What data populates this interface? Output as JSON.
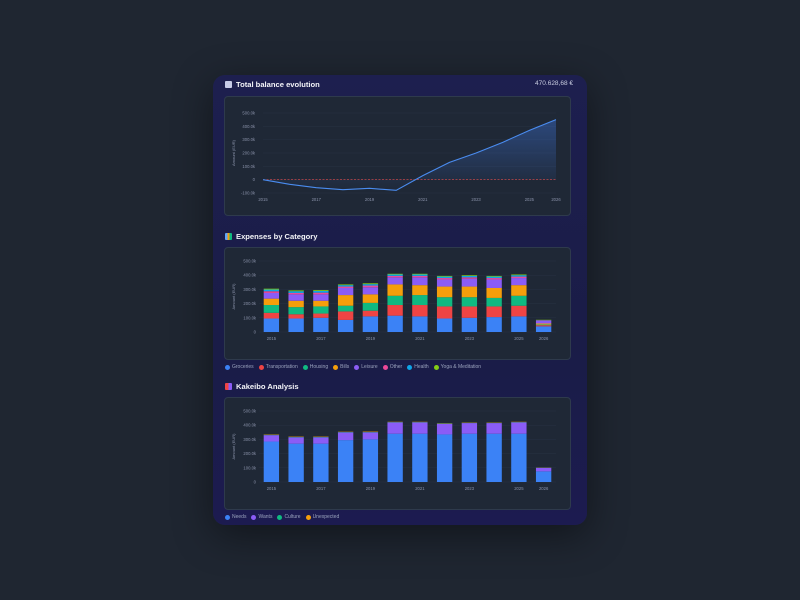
{
  "balance": {
    "title": "Total balance evolution",
    "total": "470.628,68 €",
    "chart_data": {
      "type": "area",
      "x": [
        2015,
        2016,
        2017,
        2018,
        2019,
        2020,
        2021,
        2022,
        2023,
        2024,
        2025,
        2026
      ],
      "values": [
        0,
        -35000,
        -60000,
        -75000,
        -65000,
        -80000,
        30000,
        130000,
        200000,
        280000,
        370000,
        450000
      ],
      "ylabel": "Amount (EUR)",
      "yticks": [
        "500.0k",
        "400.0k",
        "300.0k",
        "200.0k",
        "100.0k",
        "0",
        "-100.0k"
      ],
      "ylim": [
        -100000,
        500000
      ],
      "xticks": [
        "2015",
        "2017",
        "2019",
        "2021",
        "2023",
        "2025",
        "2026"
      ],
      "reference_line": 0,
      "colors": {
        "line": "#4a8cf0",
        "zero": "#e04b4b"
      }
    }
  },
  "categories": {
    "title": "Expenses by Category",
    "chart_data": {
      "type": "bar",
      "stacked": true,
      "categories": [
        "2015",
        "2016",
        "2017",
        "2018",
        "2019",
        "2020",
        "2021",
        "2022",
        "2023",
        "2024",
        "2025",
        "2026"
      ],
      "xticks": [
        "2015",
        "2017",
        "2019",
        "2021",
        "2023",
        "2025",
        "2026"
      ],
      "ylabel": "Amount (EUR)",
      "yticks": [
        "500.0k",
        "400.0k",
        "300.0k",
        "200.0k",
        "100.0k",
        "0"
      ],
      "ylim": [
        0,
        500000
      ],
      "series": [
        {
          "name": "Groceries",
          "color": "#3b82f6",
          "values": [
            95000,
            95000,
            100000,
            85000,
            110000,
            115000,
            110000,
            95000,
            100000,
            105000,
            110000,
            40000
          ]
        },
        {
          "name": "Transportation",
          "color": "#ef4444",
          "values": [
            40000,
            30000,
            30000,
            60000,
            40000,
            75000,
            80000,
            85000,
            80000,
            75000,
            75000,
            8000
          ]
        },
        {
          "name": "Housing",
          "color": "#10b981",
          "values": [
            55000,
            50000,
            50000,
            40000,
            55000,
            65000,
            70000,
            65000,
            65000,
            60000,
            70000,
            5000
          ]
        },
        {
          "name": "Bills",
          "color": "#f59e0b",
          "values": [
            45000,
            45000,
            40000,
            75000,
            60000,
            80000,
            70000,
            75000,
            75000,
            70000,
            75000,
            7000
          ]
        },
        {
          "name": "Leisure",
          "color": "#8b5cf6",
          "values": [
            40000,
            45000,
            45000,
            50000,
            50000,
            50000,
            55000,
            50000,
            55000,
            60000,
            50000,
            18000
          ]
        },
        {
          "name": "Other",
          "color": "#ec4899",
          "values": [
            12000,
            10000,
            12000,
            10000,
            12000,
            10000,
            10000,
            10000,
            10000,
            10000,
            10000,
            3000
          ]
        },
        {
          "name": "Health",
          "color": "#0ea5e9",
          "values": [
            12000,
            12000,
            12000,
            10000,
            10000,
            10000,
            10000,
            10000,
            10000,
            10000,
            10000,
            3000
          ]
        },
        {
          "name": "Yoga & Meditation",
          "color": "#84cc16",
          "values": [
            6000,
            6000,
            6000,
            5000,
            6000,
            5000,
            5000,
            5000,
            5000,
            5000,
            5000,
            2000
          ]
        }
      ]
    }
  },
  "kakeibo": {
    "title": "Kakeibo Analysis",
    "chart_data": {
      "type": "bar",
      "stacked": true,
      "categories": [
        "2015",
        "2016",
        "2017",
        "2018",
        "2019",
        "2020",
        "2021",
        "2022",
        "2023",
        "2024",
        "2025",
        "2026"
      ],
      "xticks": [
        "2015",
        "2017",
        "2019",
        "2021",
        "2023",
        "2025",
        "2026"
      ],
      "ylabel": "Amount (EUR)",
      "yticks": [
        "500.0k",
        "400.0k",
        "300.0k",
        "200.0k",
        "100.0k",
        "0"
      ],
      "ylim": [
        0,
        500000
      ],
      "series": [
        {
          "name": "Needs",
          "color": "#3b82f6",
          "values": [
            285000,
            270000,
            270000,
            295000,
            300000,
            340000,
            340000,
            335000,
            340000,
            340000,
            340000,
            75000
          ]
        },
        {
          "name": "Wants",
          "color": "#8b5cf6",
          "values": [
            45000,
            45000,
            45000,
            55000,
            50000,
            80000,
            80000,
            75000,
            75000,
            75000,
            80000,
            25000
          ]
        },
        {
          "name": "Culture",
          "color": "#10b981",
          "values": [
            2500,
            2500,
            2500,
            2000,
            2000,
            2000,
            2000,
            2000,
            2000,
            2000,
            2000,
            1000
          ]
        },
        {
          "name": "Unexpected",
          "color": "#f59e0b",
          "values": [
            2500,
            2500,
            2500,
            2000,
            3000,
            2000,
            2000,
            2000,
            2000,
            2000,
            2000,
            1000
          ]
        }
      ]
    }
  }
}
